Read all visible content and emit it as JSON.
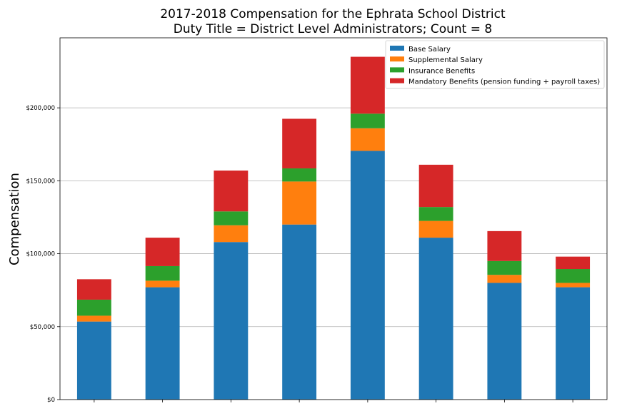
{
  "chart_data": {
    "type": "bar",
    "stacked": true,
    "title": "2017-2018 Compensation for the Ephrata School District",
    "subtitle": "Duty Title = District Level Administrators; Count = 8",
    "xlabel": "",
    "ylabel": "Compensation",
    "ylim": [
      0,
      248000
    ],
    "yticks": [
      0,
      50000,
      100000,
      150000,
      200000
    ],
    "ytick_labels": [
      "$0",
      "$50,000",
      "$100,000",
      "$150,000",
      "$200,000"
    ],
    "categories": [
      "",
      "",
      "",
      "",
      "",
      "",
      "",
      ""
    ],
    "grid": "horizontal",
    "legend_position": "top-right",
    "series": [
      {
        "name": "Base Salary",
        "color": "#1f77b4",
        "values": [
          53500,
          77000,
          108000,
          120000,
          170500,
          111000,
          80000,
          77000
        ]
      },
      {
        "name": "Supplemental Salary",
        "color": "#ff7f0e",
        "values": [
          4000,
          4500,
          11500,
          29500,
          15500,
          11500,
          5500,
          3000
        ]
      },
      {
        "name": "Insurance Benefits",
        "color": "#2ca02c",
        "values": [
          11000,
          10000,
          9500,
          9000,
          10000,
          9500,
          9500,
          9500
        ]
      },
      {
        "name": "Mandatory Benefits (pension funding + payroll taxes)",
        "color": "#d62728",
        "values": [
          14000,
          19500,
          28000,
          34000,
          39000,
          29000,
          20500,
          8500
        ]
      }
    ]
  }
}
